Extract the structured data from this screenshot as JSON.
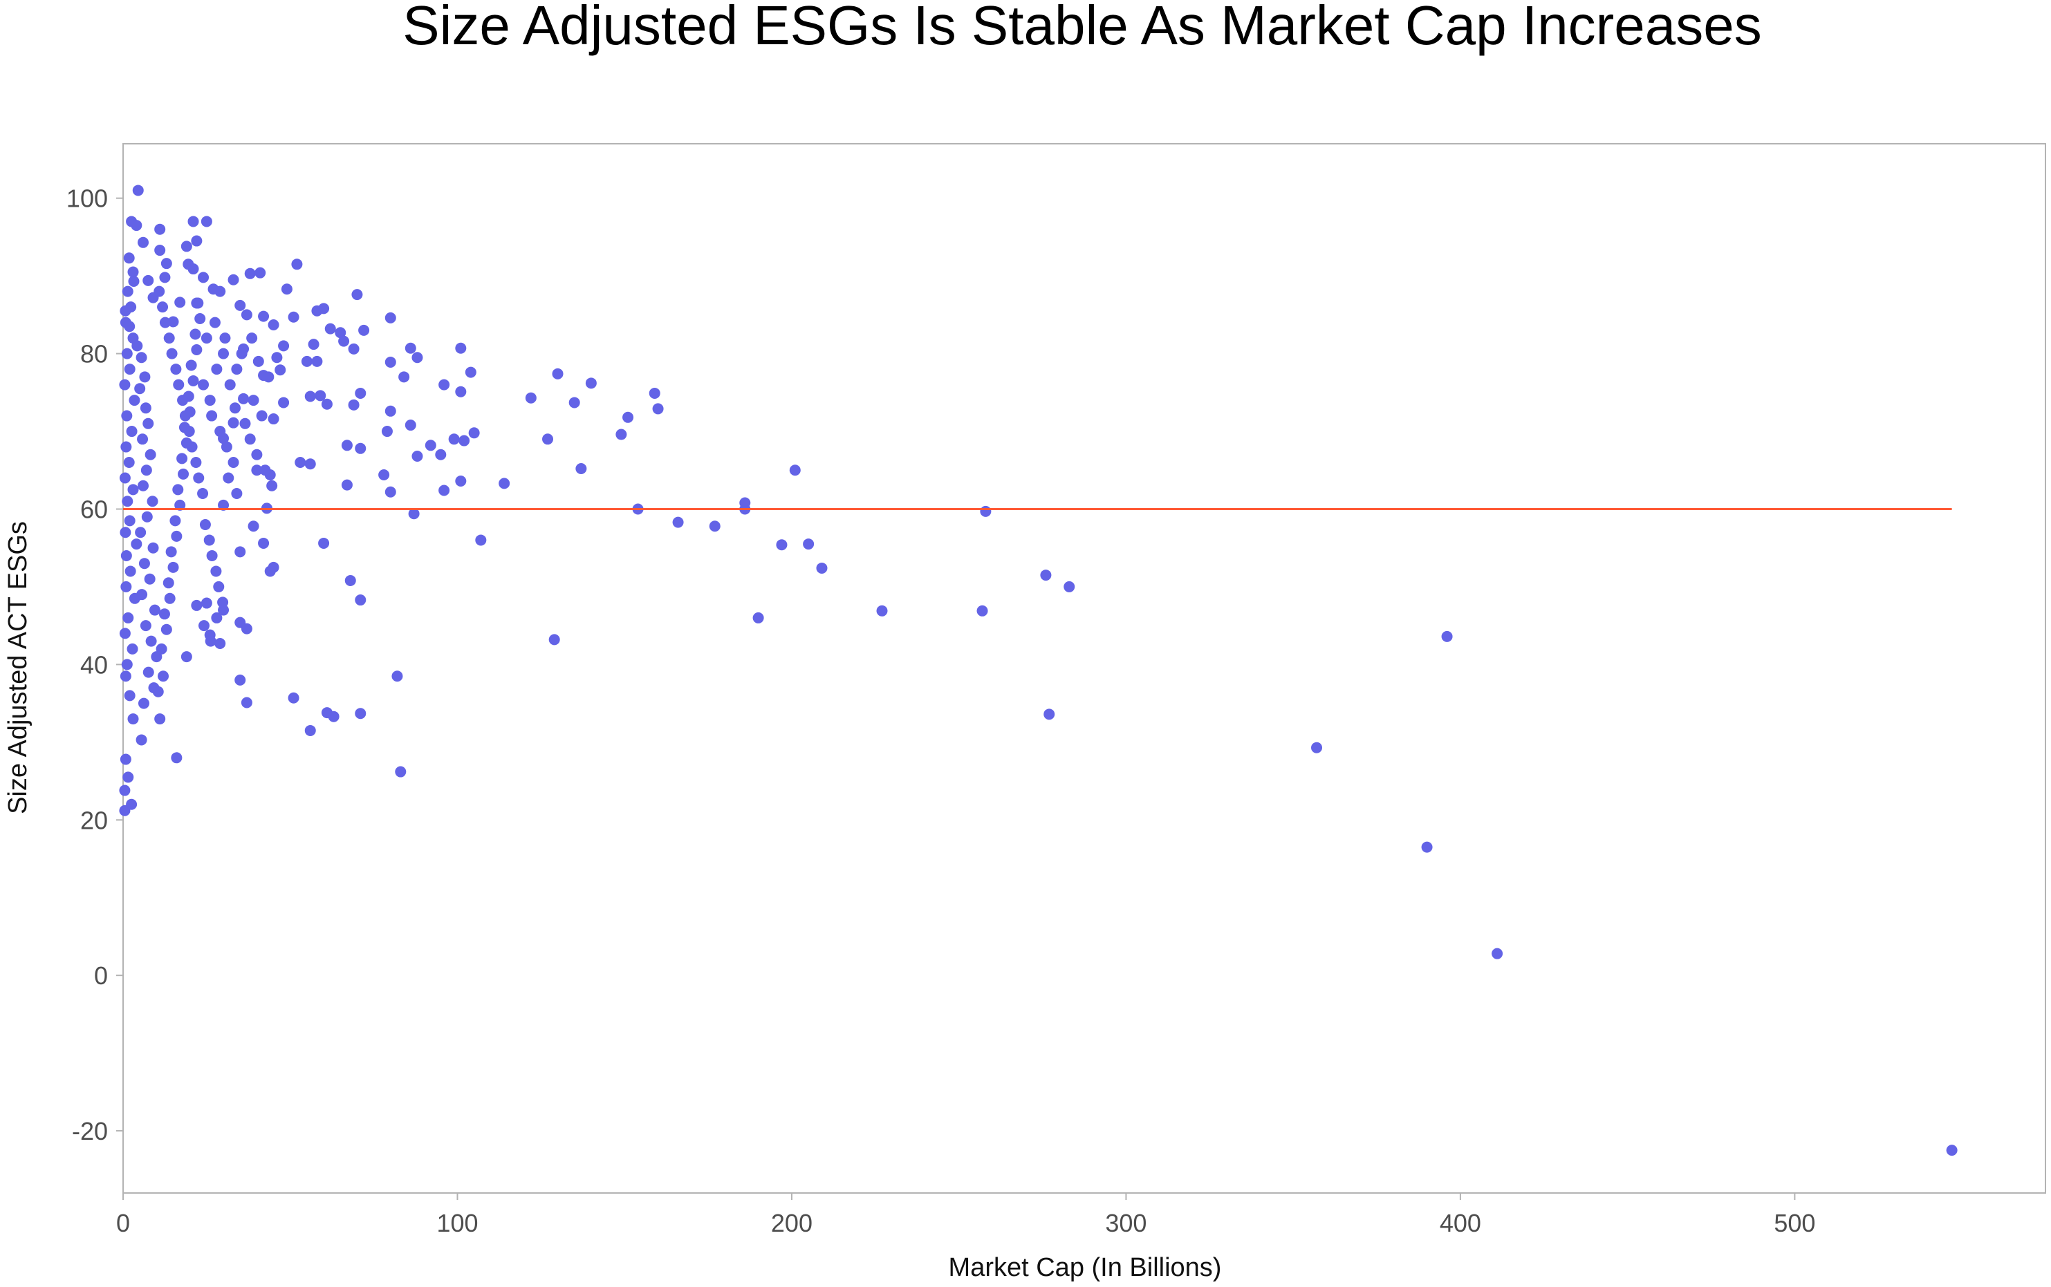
{
  "colors": {
    "points": "#6363e6",
    "reference_line": "#ff5a36",
    "plot_border": "#b3b3b3",
    "text": "#111111",
    "tick_text": "#4d4d4d"
  },
  "chart_data": {
    "type": "scatter",
    "title": "Size Adjusted ESGs Is Stable As Market Cap Increases",
    "xlabel": "Market Cap (In Billions)",
    "ylabel": "Size Adjusted ACT ESGs",
    "xlim": [
      0,
      575
    ],
    "ylim": [
      -28,
      107
    ],
    "x_ticks": [
      0,
      100,
      200,
      300,
      400,
      500
    ],
    "x_tick_labels": [
      "0",
      "100",
      "200",
      "300",
      "400",
      "500"
    ],
    "y_ticks": [
      -20,
      0,
      20,
      40,
      60,
      80,
      100
    ],
    "y_tick_labels": [
      "-20",
      "0",
      "20",
      "40",
      "60",
      "80",
      "100"
    ],
    "grid": false,
    "reference_line": {
      "y": 60,
      "x_range": [
        0,
        547
      ]
    },
    "series": [
      {
        "points": [
          [
            4.5,
            101
          ],
          [
            2.5,
            97
          ],
          [
            4,
            96.5
          ],
          [
            21,
            97
          ],
          [
            25,
            97
          ],
          [
            11,
            96
          ],
          [
            22,
            94.5
          ],
          [
            6,
            94.3
          ],
          [
            19,
            93.8
          ],
          [
            11,
            93.3
          ],
          [
            1.8,
            92.3
          ],
          [
            52,
            91.5
          ],
          [
            19.5,
            91.5
          ],
          [
            13,
            91.6
          ],
          [
            21,
            90.9
          ],
          [
            38,
            90.3
          ],
          [
            41,
            90.4
          ],
          [
            3,
            90.5
          ],
          [
            24,
            89.8
          ],
          [
            33,
            89.5
          ],
          [
            7.5,
            89.4
          ],
          [
            12.5,
            89.8
          ],
          [
            27,
            88.3
          ],
          [
            49,
            88.3
          ],
          [
            29,
            88
          ],
          [
            70,
            87.6
          ],
          [
            9,
            87.2
          ],
          [
            17,
            86.6
          ],
          [
            35,
            86.2
          ],
          [
            22,
            86.5
          ],
          [
            60,
            85.8
          ],
          [
            58,
            85.5
          ],
          [
            37,
            85
          ],
          [
            42,
            84.8
          ],
          [
            51,
            84.7
          ],
          [
            80,
            84.6
          ],
          [
            15,
            84.1
          ],
          [
            45,
            83.7
          ],
          [
            62,
            83.2
          ],
          [
            72,
            83
          ],
          [
            65,
            82.7
          ],
          [
            66,
            81.6
          ],
          [
            57,
            81.2
          ],
          [
            48,
            81
          ],
          [
            36,
            80.6
          ],
          [
            69,
            80.6
          ],
          [
            86,
            80.7
          ],
          [
            101,
            80.7
          ],
          [
            88,
            79.5
          ],
          [
            80,
            78.9
          ],
          [
            47,
            77.9
          ],
          [
            55,
            79
          ],
          [
            58,
            79
          ],
          [
            42,
            77.2
          ],
          [
            84,
            77
          ],
          [
            130,
            77.4
          ],
          [
            104,
            77.6
          ],
          [
            140,
            76.2
          ],
          [
            96,
            76
          ],
          [
            101,
            75.1
          ],
          [
            159,
            74.9
          ],
          [
            71,
            74.9
          ],
          [
            59,
            74.6
          ],
          [
            56,
            74.5
          ],
          [
            36,
            74.2
          ],
          [
            122,
            74.3
          ],
          [
            48,
            73.7
          ],
          [
            61,
            73.5
          ],
          [
            69,
            73.4
          ],
          [
            135,
            73.7
          ],
          [
            160,
            72.9
          ],
          [
            80,
            72.6
          ],
          [
            45,
            71.6
          ],
          [
            151,
            71.8
          ],
          [
            33,
            71.1
          ],
          [
            86,
            70.8
          ],
          [
            79,
            70
          ],
          [
            105,
            69.8
          ],
          [
            149,
            69.6
          ],
          [
            30,
            69.1
          ],
          [
            99,
            69
          ],
          [
            102,
            68.8
          ],
          [
            127,
            69
          ],
          [
            92,
            68.2
          ],
          [
            67,
            68.2
          ],
          [
            71,
            67.8
          ],
          [
            95,
            67
          ],
          [
            88,
            66.8
          ],
          [
            53,
            66
          ],
          [
            56,
            65.8
          ],
          [
            40,
            65
          ],
          [
            44,
            64.4
          ],
          [
            78,
            64.4
          ],
          [
            201,
            65
          ],
          [
            137,
            65.2
          ],
          [
            114,
            63.3
          ],
          [
            101,
            63.6
          ],
          [
            67,
            63.1
          ],
          [
            96,
            62.4
          ],
          [
            80,
            62.2
          ],
          [
            30,
            60.5
          ],
          [
            43,
            60.1
          ],
          [
            154,
            60
          ],
          [
            186,
            60.8
          ],
          [
            186,
            60
          ],
          [
            258,
            59.7
          ],
          [
            87,
            59.4
          ],
          [
            166,
            58.3
          ],
          [
            177,
            57.8
          ],
          [
            39,
            57.8
          ],
          [
            107,
            56
          ],
          [
            42,
            55.6
          ],
          [
            60,
            55.6
          ],
          [
            197,
            55.4
          ],
          [
            205,
            55.5
          ],
          [
            35,
            54.5
          ],
          [
            45,
            52.5
          ],
          [
            44,
            52
          ],
          [
            209,
            52.4
          ],
          [
            68,
            50.8
          ],
          [
            276,
            51.5
          ],
          [
            283,
            50
          ],
          [
            71,
            48.3
          ],
          [
            25,
            47.9
          ],
          [
            22,
            47.6
          ],
          [
            190,
            46
          ],
          [
            227,
            46.9
          ],
          [
            257,
            46.9
          ],
          [
            30,
            47
          ],
          [
            28,
            46
          ],
          [
            35,
            45.4
          ],
          [
            37,
            44.6
          ],
          [
            396,
            43.6
          ],
          [
            129,
            43.2
          ],
          [
            29,
            42.7
          ],
          [
            26,
            43.8
          ],
          [
            19,
            41
          ],
          [
            82,
            38.5
          ],
          [
            35,
            38
          ],
          [
            37,
            35.1
          ],
          [
            51,
            35.7
          ],
          [
            61,
            33.8
          ],
          [
            63,
            33.3
          ],
          [
            71,
            33.7
          ],
          [
            277,
            33.6
          ],
          [
            56,
            31.5
          ],
          [
            357,
            29.3
          ],
          [
            16,
            28
          ],
          [
            83,
            26.2
          ],
          [
            0.5,
            21.2
          ],
          [
            2.5,
            22
          ],
          [
            1.5,
            25.5
          ],
          [
            390,
            16.5
          ],
          [
            411,
            2.8
          ],
          [
            547,
            -22.5
          ],
          [
            0.5,
            23.8
          ],
          [
            0.8,
            27.8
          ],
          [
            3,
            33
          ],
          [
            5.5,
            30.3
          ],
          [
            2,
            36
          ],
          [
            0.8,
            38.5
          ],
          [
            1.2,
            40
          ],
          [
            2.8,
            42
          ],
          [
            0.6,
            44
          ],
          [
            1.5,
            46
          ],
          [
            3.5,
            48.5
          ],
          [
            0.9,
            50
          ],
          [
            2.2,
            52
          ],
          [
            1,
            54
          ],
          [
            4,
            55.5
          ],
          [
            0.7,
            57
          ],
          [
            2,
            58.5
          ],
          [
            1.3,
            61
          ],
          [
            3,
            62.5
          ],
          [
            0.6,
            64
          ],
          [
            1.8,
            66
          ],
          [
            0.9,
            68
          ],
          [
            2.6,
            70
          ],
          [
            1.1,
            72
          ],
          [
            3.4,
            74
          ],
          [
            0.5,
            76
          ],
          [
            2,
            78
          ],
          [
            1.2,
            80
          ],
          [
            3,
            82
          ],
          [
            0.8,
            84
          ],
          [
            2.3,
            86
          ],
          [
            1.4,
            88
          ],
          [
            3.2,
            89.3
          ],
          [
            0.7,
            85.5
          ],
          [
            1.9,
            83.5
          ],
          [
            4.2,
            81
          ],
          [
            5.5,
            79.5
          ],
          [
            6.5,
            77
          ],
          [
            5,
            75.5
          ],
          [
            6.8,
            73
          ],
          [
            7.5,
            71
          ],
          [
            5.8,
            69
          ],
          [
            8.2,
            67
          ],
          [
            7,
            65
          ],
          [
            6,
            63
          ],
          [
            8.8,
            61
          ],
          [
            7.2,
            59
          ],
          [
            5.2,
            57
          ],
          [
            9,
            55
          ],
          [
            6.4,
            53
          ],
          [
            8,
            51
          ],
          [
            5.6,
            49
          ],
          [
            9.5,
            47
          ],
          [
            6.8,
            45
          ],
          [
            8.4,
            43
          ],
          [
            10,
            41
          ],
          [
            7.6,
            39
          ],
          [
            9.2,
            37
          ],
          [
            6.2,
            35
          ],
          [
            11,
            33
          ],
          [
            10.5,
            36.5
          ],
          [
            12,
            38.5
          ],
          [
            11.5,
            42
          ],
          [
            13,
            44.5
          ],
          [
            12.4,
            46.5
          ],
          [
            14,
            48.5
          ],
          [
            13.6,
            50.5
          ],
          [
            15,
            52.5
          ],
          [
            14.4,
            54.5
          ],
          [
            16,
            56.5
          ],
          [
            15.6,
            58.5
          ],
          [
            17,
            60.5
          ],
          [
            16.4,
            62.5
          ],
          [
            18,
            64.5
          ],
          [
            17.6,
            66.5
          ],
          [
            19,
            68.5
          ],
          [
            18.4,
            70.5
          ],
          [
            20,
            72.5
          ],
          [
            19.6,
            74.5
          ],
          [
            21,
            76.5
          ],
          [
            20.4,
            78.5
          ],
          [
            22,
            80.5
          ],
          [
            21.6,
            82.5
          ],
          [
            23,
            84.5
          ],
          [
            22.4,
            86.5
          ],
          [
            10.8,
            88
          ],
          [
            11.8,
            86
          ],
          [
            12.6,
            84
          ],
          [
            13.8,
            82
          ],
          [
            14.6,
            80
          ],
          [
            15.8,
            78
          ],
          [
            16.6,
            76
          ],
          [
            17.8,
            74
          ],
          [
            18.6,
            72
          ],
          [
            19.8,
            70
          ],
          [
            20.6,
            68
          ],
          [
            21.8,
            66
          ],
          [
            22.6,
            64
          ],
          [
            23.8,
            62
          ],
          [
            24.6,
            58
          ],
          [
            25.8,
            56
          ],
          [
            26.6,
            54
          ],
          [
            27.8,
            52
          ],
          [
            28.6,
            50
          ],
          [
            29.8,
            48
          ],
          [
            24,
            76
          ],
          [
            26,
            74
          ],
          [
            28,
            78
          ],
          [
            30,
            80
          ],
          [
            32,
            76
          ],
          [
            34,
            78
          ],
          [
            26.5,
            72
          ],
          [
            29,
            70
          ],
          [
            31,
            68
          ],
          [
            33,
            66
          ],
          [
            25,
            82
          ],
          [
            27.5,
            84
          ],
          [
            30.5,
            82
          ],
          [
            35.5,
            80
          ],
          [
            38.5,
            82
          ],
          [
            40.5,
            79
          ],
          [
            43.5,
            77
          ],
          [
            46,
            79.5
          ],
          [
            39,
            74
          ],
          [
            41.5,
            72
          ],
          [
            33.5,
            73
          ],
          [
            36.5,
            71
          ],
          [
            38,
            69
          ],
          [
            40,
            67
          ],
          [
            42.5,
            65
          ],
          [
            44.5,
            63
          ],
          [
            31.5,
            64
          ],
          [
            34,
            62
          ],
          [
            24.2,
            45
          ],
          [
            26.2,
            43
          ]
        ]
      }
    ]
  }
}
